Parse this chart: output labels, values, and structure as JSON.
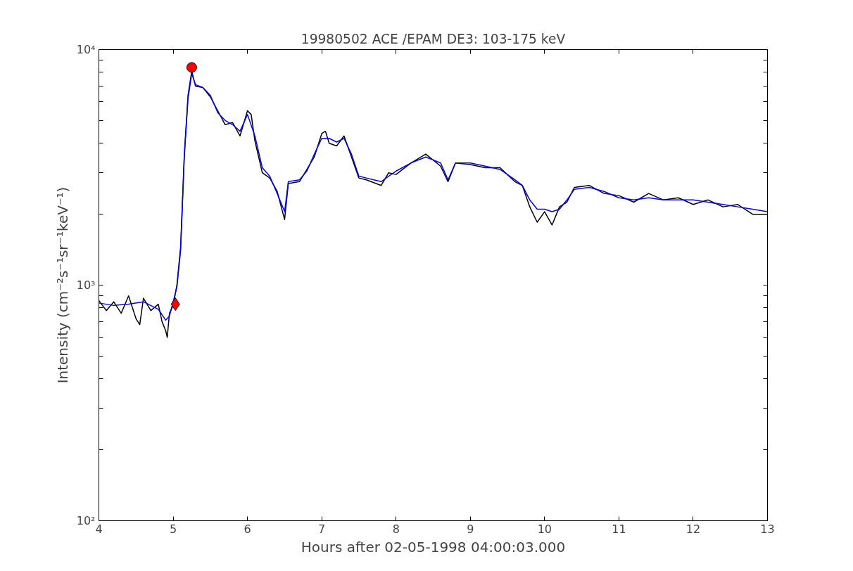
{
  "chart_data": {
    "type": "line",
    "title": "19980502 ACE /EPAM DE3: 103-175 keV",
    "xlabel": "Hours after 02-05-1998 04:00:03.000",
    "ylabel": "Intensity (cm⁻²s⁻¹sr⁻¹keV⁻¹)",
    "log": "y",
    "grid": false,
    "line_style": "solid",
    "marker": "none",
    "xlim": [
      4,
      13
    ],
    "xticks": [
      4,
      5,
      6,
      7,
      8,
      9,
      10,
      11,
      12,
      13
    ],
    "ylim": [
      100,
      10000
    ],
    "yticks": [
      {
        "value": 100,
        "label": "10²"
      },
      {
        "value": 200,
        "label": null
      },
      {
        "value": 300,
        "label": null
      },
      {
        "value": 400,
        "label": null
      },
      {
        "value": 500,
        "label": null
      },
      {
        "value": 600,
        "label": null
      },
      {
        "value": 700,
        "label": null
      },
      {
        "value": 800,
        "label": null
      },
      {
        "value": 900,
        "label": null
      },
      {
        "value": 1000,
        "label": "10³"
      },
      {
        "value": 2000,
        "label": null
      },
      {
        "value": 3000,
        "label": null
      },
      {
        "value": 4000,
        "label": null
      },
      {
        "value": 5000,
        "label": null
      },
      {
        "value": 6000,
        "label": null
      },
      {
        "value": 7000,
        "label": null
      },
      {
        "value": 8000,
        "label": null
      },
      {
        "value": 9000,
        "label": null
      },
      {
        "value": 10000,
        "label": "10⁴"
      }
    ],
    "series": [
      {
        "color": "#000000",
        "x": [
          4.0,
          4.1,
          4.2,
          4.3,
          4.4,
          4.5,
          4.55,
          4.6,
          4.7,
          4.8,
          4.85,
          4.9,
          4.92,
          4.95,
          5.0,
          5.05,
          5.1,
          5.15,
          5.2,
          5.25,
          5.3,
          5.4,
          5.5,
          5.6,
          5.7,
          5.8,
          5.9,
          6.0,
          6.05,
          6.1,
          6.2,
          6.3,
          6.4,
          6.5,
          6.55,
          6.7,
          6.8,
          6.9,
          7.0,
          7.05,
          7.1,
          7.2,
          7.3,
          7.4,
          7.5,
          7.6,
          7.8,
          7.9,
          8.0,
          8.2,
          8.4,
          8.6,
          8.7,
          8.8,
          9.0,
          9.2,
          9.4,
          9.6,
          9.7,
          9.8,
          9.9,
          10.0,
          10.1,
          10.2,
          10.3,
          10.4,
          10.6,
          10.8,
          11.0,
          11.2,
          11.4,
          11.6,
          11.8,
          12.0,
          12.2,
          12.4,
          12.6,
          12.8,
          13.0
        ],
        "values": [
          860,
          780,
          850,
          760,
          900,
          720,
          680,
          880,
          780,
          830,
          700,
          640,
          600,
          760,
          820,
          1000,
          1450,
          3600,
          6400,
          8100,
          7000,
          6900,
          6300,
          5500,
          4800,
          4900,
          4300,
          5500,
          5300,
          4100,
          3000,
          2850,
          2500,
          1900,
          2700,
          2750,
          3100,
          3500,
          4400,
          4500,
          4000,
          3900,
          4300,
          3500,
          2850,
          2800,
          2650,
          3000,
          2950,
          3300,
          3600,
          3200,
          2750,
          3300,
          3250,
          3150,
          3150,
          2750,
          2650,
          2150,
          1850,
          2050,
          1800,
          2150,
          2250,
          2600,
          2650,
          2450,
          2400,
          2250,
          2450,
          2300,
          2350,
          2200,
          2300,
          2150,
          2200,
          2000,
          2000
        ]
      },
      {
        "color": "#0000ff",
        "x": [
          4.0,
          4.2,
          4.4,
          4.6,
          4.8,
          4.9,
          4.95,
          5.0,
          5.05,
          5.1,
          5.15,
          5.2,
          5.25,
          5.3,
          5.4,
          5.5,
          5.6,
          5.7,
          5.8,
          5.9,
          6.0,
          6.1,
          6.2,
          6.3,
          6.4,
          6.5,
          6.55,
          6.7,
          6.8,
          6.9,
          7.0,
          7.1,
          7.2,
          7.3,
          7.4,
          7.5,
          7.6,
          7.8,
          7.9,
          8.0,
          8.2,
          8.4,
          8.6,
          8.7,
          8.8,
          9.0,
          9.2,
          9.4,
          9.6,
          9.7,
          9.8,
          9.9,
          10.0,
          10.1,
          10.2,
          10.3,
          10.4,
          10.6,
          10.8,
          11.0,
          11.2,
          11.4,
          11.6,
          11.8,
          12.0,
          12.2,
          12.4,
          12.6,
          12.8,
          13.0
        ],
        "values": [
          840,
          820,
          830,
          850,
          790,
          710,
          740,
          850,
          980,
          1400,
          3500,
          6200,
          7900,
          7100,
          6900,
          6400,
          5400,
          5000,
          4800,
          4500,
          5300,
          4300,
          3150,
          2900,
          2450,
          2050,
          2750,
          2800,
          3050,
          3600,
          4200,
          4200,
          4050,
          4200,
          3600,
          2900,
          2850,
          2750,
          2900,
          3050,
          3300,
          3500,
          3300,
          2800,
          3300,
          3300,
          3200,
          3100,
          2800,
          2650,
          2300,
          2100,
          2100,
          2050,
          2100,
          2300,
          2550,
          2600,
          2500,
          2350,
          2300,
          2350,
          2300,
          2300,
          2300,
          2250,
          2200,
          2150,
          2100,
          2050
        ]
      },
      {
        "type": "scatter",
        "marker": "circle",
        "color": "#ff0000",
        "x": [
          5.25
        ],
        "values": [
          8400
        ]
      },
      {
        "type": "scatter",
        "marker": "diamond",
        "color": "#ff0000",
        "x": [
          5.03
        ],
        "values": [
          830
        ]
      }
    ]
  }
}
